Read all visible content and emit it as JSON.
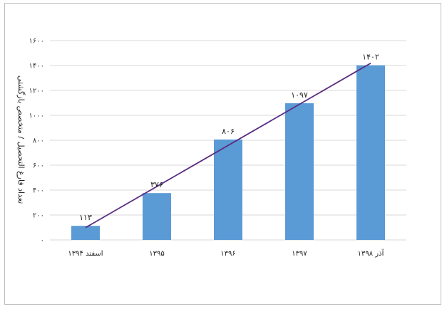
{
  "chart_data": {
    "type": "bar",
    "title": "",
    "xlabel": "",
    "ylabel": "تعداد فارغ التحصیل / متخصص بازگشتی",
    "categories": [
      "اسفند ۱۳۹۴",
      "۱۳۹۵",
      "۱۳۹۶",
      "۱۳۹۷",
      "آذر ۱۳۹۸"
    ],
    "values": [
      113,
      376,
      806,
      1097,
      1402
    ],
    "value_labels": [
      "۱۱۳",
      "۳۷۶",
      "۸۰۶",
      "۱۰۹۷",
      "۱۴۰۲"
    ],
    "ylim": [
      0,
      1600
    ],
    "yticks": [
      0,
      200,
      400,
      600,
      800,
      1000,
      1200,
      1400,
      1600
    ],
    "ytick_labels": [
      "۰",
      "۲۰۰",
      "۴۰۰",
      "۶۰۰",
      "۸۰۰",
      "۱۰۰۰",
      "۱۲۰۰",
      "۱۴۰۰",
      "۱۶۰۰"
    ],
    "grid": true,
    "trendline": true,
    "colors": {
      "bar": "#5b9bd5",
      "trend": "#5a2d82",
      "grid": "#d9d9d9"
    }
  }
}
